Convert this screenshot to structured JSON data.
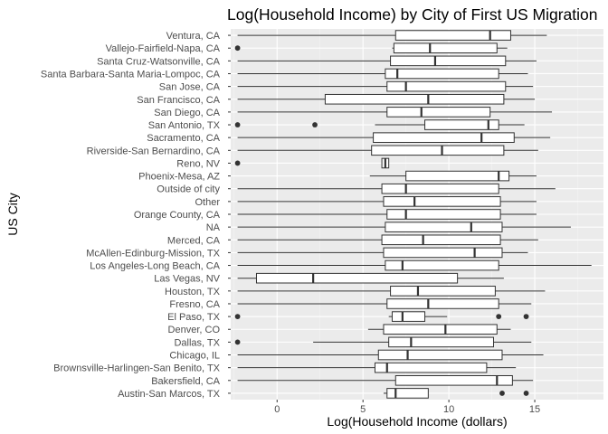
{
  "chart_data": {
    "type": "boxplot",
    "orientation": "horizontal",
    "title": "Log(Household Income) by City of First US Migration",
    "xlabel": "Log(Household Income (dollars)",
    "ylabel": "US City",
    "xlim": [
      -2.7,
      19.0
    ],
    "xticks": [
      0,
      5,
      10,
      15
    ],
    "grid": true,
    "legend": "none",
    "colors": {
      "panel": "#ebebeb",
      "grid_major": "#ffffff",
      "grid_minor": "#f5f5f5",
      "box_fill": "#ffffff",
      "box_stroke": "#333333",
      "outlier": "#333333",
      "tick_text": "#4d4d4d"
    },
    "categories": [
      "Austin-San Marcos, TX",
      "Bakersfield, CA",
      "Brownsville-Harlingen-San Benito, TX",
      "Chicago, IL",
      "Dallas, TX",
      "Denver, CO",
      "El Paso, TX",
      "Fresno, CA",
      "Houston, TX",
      "Las Vegas, NV",
      "Los Angeles-Long Beach, CA",
      "McAllen-Edinburg-Mission, TX",
      "Merced, CA",
      "NA",
      "Orange County, CA",
      "Other",
      "Outside of city",
      "Phoenix-Mesa, AZ",
      "Reno, NV",
      "Riverside-San Bernardino, CA",
      "Sacramento, CA",
      "San Antonio, TX",
      "San Diego, CA",
      "San Francisco, CA",
      "San Jose, CA",
      "Santa Barbara-Santa Maria-Lompoc, CA",
      "Santa Cruz-Watsonville, CA",
      "Vallejo-Fairfield-Napa, CA",
      "Ventura, CA"
    ],
    "boxes": [
      {
        "min": 6.2,
        "q1": 6.4,
        "median": 6.9,
        "q3": 8.8,
        "max": 8.8,
        "outliers": [
          13.1,
          14.5
        ]
      },
      {
        "min": -2.3,
        "q1": 6.9,
        "median": 12.8,
        "q3": 13.7,
        "max": 14.9,
        "outliers": []
      },
      {
        "min": -2.3,
        "q1": 5.7,
        "median": 6.4,
        "q3": 12.2,
        "max": 13.9,
        "outliers": []
      },
      {
        "min": -2.3,
        "q1": 5.9,
        "median": 7.6,
        "q3": 13.1,
        "max": 15.5,
        "outliers": []
      },
      {
        "min": 2.1,
        "q1": 6.5,
        "median": 7.8,
        "q3": 12.6,
        "max": 14.8,
        "outliers": [
          -2.3
        ]
      },
      {
        "min": 5.3,
        "q1": 6.2,
        "median": 9.8,
        "q3": 12.8,
        "max": 13.6,
        "outliers": []
      },
      {
        "min": 6.5,
        "q1": 6.7,
        "median": 7.3,
        "q3": 8.6,
        "max": 9.9,
        "outliers": [
          -2.3,
          12.9,
          14.5
        ]
      },
      {
        "min": -2.3,
        "q1": 6.4,
        "median": 8.8,
        "q3": 12.9,
        "max": 14.8,
        "outliers": []
      },
      {
        "min": -2.3,
        "q1": 6.6,
        "median": 8.2,
        "q3": 12.7,
        "max": 15.6,
        "outliers": []
      },
      {
        "min": -2.3,
        "q1": -1.2,
        "median": 2.1,
        "q3": 10.5,
        "max": 13.2,
        "outliers": []
      },
      {
        "min": -2.3,
        "q1": 6.3,
        "median": 7.3,
        "q3": 12.9,
        "max": 18.3,
        "outliers": []
      },
      {
        "min": -2.3,
        "q1": 6.2,
        "median": 11.5,
        "q3": 13.1,
        "max": 14.6,
        "outliers": []
      },
      {
        "min": -2.3,
        "q1": 6.1,
        "median": 8.5,
        "q3": 13.0,
        "max": 15.2,
        "outliers": []
      },
      {
        "min": -2.3,
        "q1": 6.3,
        "median": 11.3,
        "q3": 13.1,
        "max": 17.1,
        "outliers": []
      },
      {
        "min": -2.3,
        "q1": 6.4,
        "median": 7.5,
        "q3": 13.0,
        "max": 15.1,
        "outliers": []
      },
      {
        "min": -2.3,
        "q1": 6.2,
        "median": 8.0,
        "q3": 13.0,
        "max": 15.1,
        "outliers": []
      },
      {
        "min": -2.3,
        "q1": 6.1,
        "median": 7.5,
        "q3": 12.9,
        "max": 16.2,
        "outliers": []
      },
      {
        "min": 5.4,
        "q1": 7.5,
        "median": 12.9,
        "q3": 13.5,
        "max": 15.1,
        "outliers": []
      },
      {
        "min": 6.1,
        "q1": 6.1,
        "median": 6.3,
        "q3": 6.5,
        "max": 6.5,
        "outliers": [
          -2.3
        ]
      },
      {
        "min": -2.3,
        "q1": 5.5,
        "median": 9.6,
        "q3": 13.2,
        "max": 15.2,
        "outliers": []
      },
      {
        "min": -2.3,
        "q1": 5.6,
        "median": 11.9,
        "q3": 13.8,
        "max": 15.9,
        "outliers": []
      },
      {
        "min": 5.7,
        "q1": 8.6,
        "median": 12.3,
        "q3": 12.9,
        "max": 14.4,
        "outliers": [
          -2.3,
          2.2
        ]
      },
      {
        "min": -2.3,
        "q1": 6.4,
        "median": 8.4,
        "q3": 12.4,
        "max": 16.0,
        "outliers": []
      },
      {
        "min": -2.3,
        "q1": 2.8,
        "median": 8.8,
        "q3": 13.2,
        "max": 15.0,
        "outliers": []
      },
      {
        "min": -2.3,
        "q1": 6.4,
        "median": 7.5,
        "q3": 13.3,
        "max": 14.9,
        "outliers": []
      },
      {
        "min": -2.3,
        "q1": 6.3,
        "median": 7.0,
        "q3": 12.9,
        "max": 14.6,
        "outliers": []
      },
      {
        "min": -2.3,
        "q1": 6.6,
        "median": 9.2,
        "q3": 13.3,
        "max": 15.1,
        "outliers": []
      },
      {
        "min": 6.7,
        "q1": 6.8,
        "median": 8.9,
        "q3": 12.8,
        "max": 13.4,
        "outliers": [
          -2.3
        ]
      },
      {
        "min": -2.3,
        "q1": 6.9,
        "median": 12.4,
        "q3": 13.6,
        "max": 15.7,
        "outliers": []
      }
    ]
  }
}
